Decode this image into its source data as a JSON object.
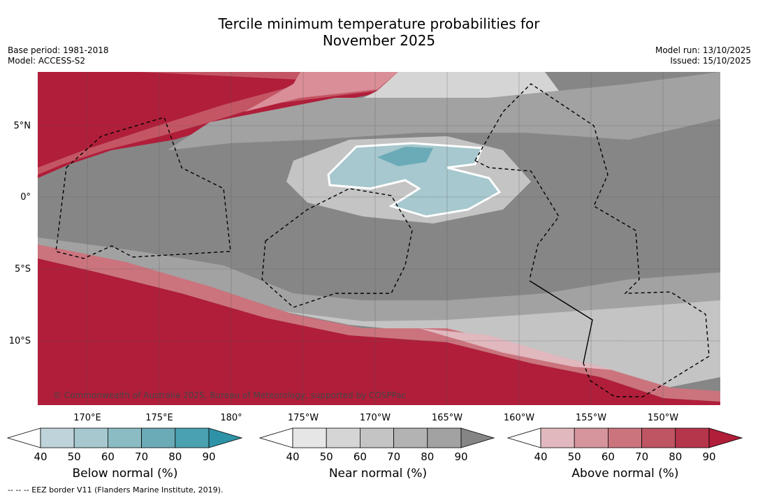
{
  "title_line1": "Tercile minimum temperature probabilities for",
  "title_line2": "November 2025",
  "base_period": "Base period: 1981-2018",
  "model": "Model: ACCESS-S2",
  "model_run": "Model run: 13/10/2025",
  "issued": "Issued: 15/10/2025",
  "copyright": "© Commonwealth of Australia 2025, Bureau of Meteorology, supported by COSPPac",
  "footnote": "-- -- -- EEZ border V11 (Flanders Marine Institute, 2019).",
  "lat_labels": [
    "5°N",
    "0°",
    "5°S",
    "10°S"
  ],
  "lon_labels": [
    "170°E",
    "175°E",
    "180°",
    "175°W",
    "170°W",
    "165°W",
    "160°W",
    "155°W",
    "150°W"
  ],
  "colorbars": [
    {
      "name": "below",
      "title": "Below normal (%)",
      "ticks": [
        "40",
        "50",
        "60",
        "70",
        "80",
        "90"
      ],
      "colors": [
        "#ffffff",
        "#bfd3da",
        "#a6c8ce",
        "#8cbcc3",
        "#6aabb7",
        "#4aa1b0",
        "#2f93a8"
      ]
    },
    {
      "name": "near",
      "title": "Near normal (%)",
      "ticks": [
        "40",
        "50",
        "60",
        "70",
        "80",
        "90"
      ],
      "colors": [
        "#ffffff",
        "#e6e6e6",
        "#d5d5d5",
        "#c4c4c4",
        "#b3b3b3",
        "#a2a2a2",
        "#858585"
      ]
    },
    {
      "name": "above",
      "title": "Above normal (%)",
      "ticks": [
        "40",
        "50",
        "60",
        "70",
        "80",
        "90"
      ],
      "colors": [
        "#ffffff",
        "#e0b8bd",
        "#d6959c",
        "#cb747e",
        "#bf5462",
        "#b5354a",
        "#b01e3a"
      ]
    }
  ]
}
